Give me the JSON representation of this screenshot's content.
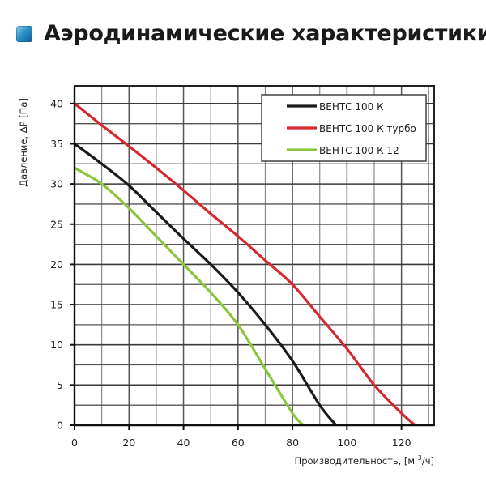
{
  "header": {
    "title": "Аэродинамические характеристики",
    "icon": "blue-square-icon"
  },
  "chart_data": {
    "type": "line",
    "title": "Аэродинамические характеристики",
    "xlabel": "Производительность, [м³/ч]",
    "xlabel_main": "Производительность, [м",
    "xlabel_sup": "3",
    "xlabel_end": "/ч]",
    "ylabel": "Давление, ΔP [Па]",
    "xlim": [
      0,
      132
    ],
    "ylim": [
      0,
      42.2
    ],
    "x_ticks": [
      0,
      20,
      40,
      60,
      80,
      100,
      120
    ],
    "y_ticks": [
      0,
      5,
      10,
      15,
      20,
      25,
      30,
      35,
      40
    ],
    "grid": true,
    "grid_x_step": 10,
    "grid_y_step": 2.5,
    "legend_position": "upper right",
    "series": [
      {
        "name": "ВЕНТС 100 К",
        "color": "#1a1a1a",
        "x": [
          0,
          10,
          20,
          30,
          40,
          50,
          60,
          70,
          80,
          90,
          96
        ],
        "y": [
          35,
          32.5,
          29.8,
          26.5,
          23.2,
          20,
          16.5,
          12.5,
          8,
          2.5,
          0
        ]
      },
      {
        "name": "ВЕНТС 100 К турбо",
        "color": "#d7282f",
        "x": [
          0,
          10,
          20,
          30,
          40,
          50,
          60,
          70,
          80,
          90,
          100,
          110,
          120,
          125
        ],
        "y": [
          40,
          37.3,
          34.7,
          32,
          29.2,
          26.3,
          23.5,
          20.5,
          17.5,
          13.5,
          9.5,
          5,
          1.5,
          0
        ]
      },
      {
        "name": "ВЕНТС 100 К 12",
        "color": "#8cc63f",
        "x": [
          0,
          10,
          20,
          30,
          40,
          50,
          60,
          70,
          80,
          84
        ],
        "y": [
          32,
          30,
          27,
          23.5,
          20,
          16.5,
          12.5,
          7,
          1.5,
          0
        ]
      }
    ]
  }
}
